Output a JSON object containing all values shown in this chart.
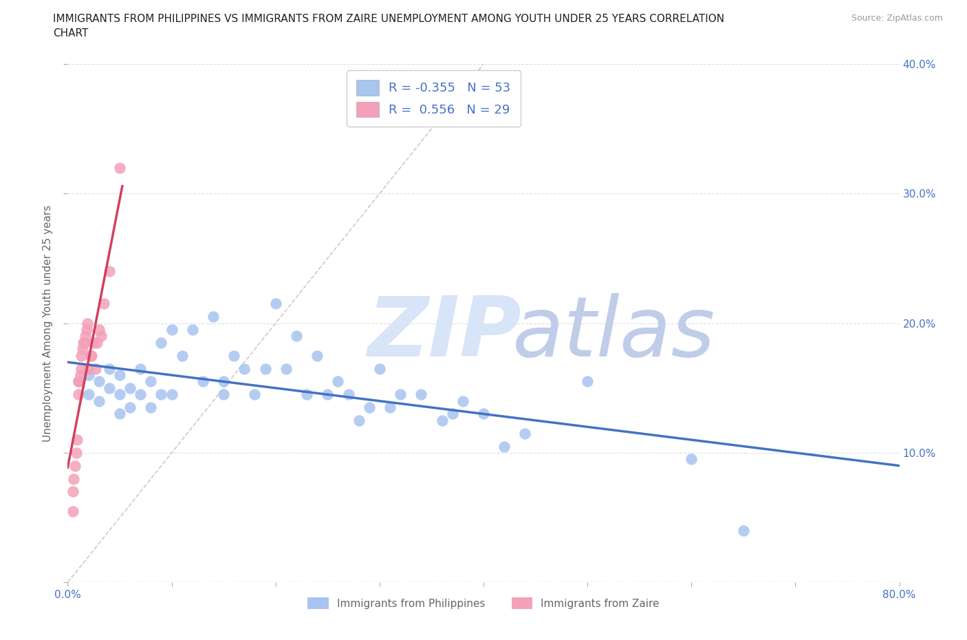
{
  "title_line1": "IMMIGRANTS FROM PHILIPPINES VS IMMIGRANTS FROM ZAIRE UNEMPLOYMENT AMONG YOUTH UNDER 25 YEARS CORRELATION",
  "title_line2": "CHART",
  "source": "Source: ZipAtlas.com",
  "ylabel": "Unemployment Among Youth under 25 years",
  "xlim": [
    0.0,
    0.8
  ],
  "ylim": [
    0.0,
    0.4
  ],
  "xticks": [
    0.0,
    0.1,
    0.2,
    0.3,
    0.4,
    0.5,
    0.6,
    0.7,
    0.8
  ],
  "yticks": [
    0.0,
    0.1,
    0.2,
    0.3,
    0.4
  ],
  "right_ytick_labels": [
    "",
    "10.0%",
    "20.0%",
    "30.0%",
    "40.0%"
  ],
  "blue_fill": "#A8C4F0",
  "pink_fill": "#F4A0B8",
  "blue_line": "#4472C4",
  "pink_line": "#D04060",
  "diag_color": "#D0C8C8",
  "grid_color": "#DDDDDD",
  "tick_color": "#4472C4",
  "label_color": "#666666",
  "title_color": "#222222",
  "source_color": "#999999",
  "watermark_zip_color": "#D8E4F8",
  "watermark_atlas_color": "#C0CDE8",
  "r_blue": -0.355,
  "n_blue": 53,
  "r_pink": 0.556,
  "n_pink": 29,
  "legend_upper_label1": "R = -0.355   N = 53",
  "legend_upper_label2": "R =  0.556   N = 29",
  "legend_bottom_label1": "Immigrants from Philippines",
  "legend_bottom_label2": "Immigrants from Zaire",
  "blue_x": [
    0.01,
    0.02,
    0.02,
    0.03,
    0.03,
    0.04,
    0.04,
    0.05,
    0.05,
    0.05,
    0.06,
    0.06,
    0.07,
    0.07,
    0.08,
    0.08,
    0.09,
    0.09,
    0.1,
    0.1,
    0.11,
    0.12,
    0.13,
    0.14,
    0.15,
    0.15,
    0.16,
    0.17,
    0.18,
    0.19,
    0.2,
    0.21,
    0.22,
    0.23,
    0.24,
    0.25,
    0.26,
    0.27,
    0.28,
    0.29,
    0.3,
    0.31,
    0.32,
    0.34,
    0.36,
    0.37,
    0.38,
    0.4,
    0.42,
    0.44,
    0.5,
    0.6,
    0.65
  ],
  "blue_y": [
    0.155,
    0.16,
    0.145,
    0.155,
    0.14,
    0.165,
    0.15,
    0.16,
    0.145,
    0.13,
    0.15,
    0.135,
    0.165,
    0.145,
    0.155,
    0.135,
    0.185,
    0.145,
    0.195,
    0.145,
    0.175,
    0.195,
    0.155,
    0.205,
    0.155,
    0.145,
    0.175,
    0.165,
    0.145,
    0.165,
    0.215,
    0.165,
    0.19,
    0.145,
    0.175,
    0.145,
    0.155,
    0.145,
    0.125,
    0.135,
    0.165,
    0.135,
    0.145,
    0.145,
    0.125,
    0.13,
    0.14,
    0.13,
    0.105,
    0.115,
    0.155,
    0.095,
    0.04
  ],
  "pink_x": [
    0.005,
    0.005,
    0.006,
    0.007,
    0.008,
    0.009,
    0.01,
    0.01,
    0.011,
    0.012,
    0.013,
    0.013,
    0.014,
    0.015,
    0.016,
    0.017,
    0.018,
    0.019,
    0.02,
    0.022,
    0.023,
    0.025,
    0.027,
    0.028,
    0.03,
    0.032,
    0.035,
    0.04,
    0.05
  ],
  "pink_y": [
    0.055,
    0.07,
    0.08,
    0.09,
    0.1,
    0.11,
    0.145,
    0.155,
    0.155,
    0.16,
    0.165,
    0.175,
    0.18,
    0.185,
    0.185,
    0.19,
    0.195,
    0.2,
    0.165,
    0.175,
    0.175,
    0.185,
    0.165,
    0.185,
    0.195,
    0.19,
    0.215,
    0.24,
    0.32
  ]
}
